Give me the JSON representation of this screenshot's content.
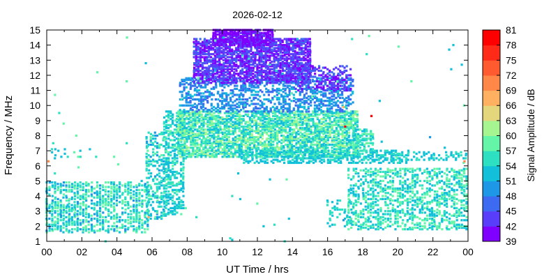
{
  "chart_data": {
    "type": "heatmap",
    "title": "2026-02-12",
    "xlabel": "UT Time / hrs",
    "ylabel": "Frequency / MHz",
    "xlim": [
      0,
      24
    ],
    "ylim": [
      1,
      15
    ],
    "x_ticks": [
      "00",
      "02",
      "04",
      "06",
      "08",
      "10",
      "12",
      "14",
      "16",
      "18",
      "20",
      "22",
      "00"
    ],
    "y_ticks": [
      "1",
      "2",
      "3",
      "4",
      "5",
      "6",
      "7",
      "8",
      "9",
      "10",
      "11",
      "12",
      "13",
      "14",
      "15"
    ],
    "colorbar": {
      "label": "Signal Amplitude / dB",
      "min": 39,
      "max": 81,
      "ticks": [
        "39",
        "42",
        "45",
        "48",
        "51",
        "54",
        "57",
        "60",
        "63",
        "66",
        "69",
        "72",
        "75",
        "78",
        "81"
      ],
      "colors": [
        "#8000ff",
        "#5a3cfb",
        "#3c6af0",
        "#1e98e6",
        "#12c0d9",
        "#2ee0c2",
        "#64f5a8",
        "#a6f591",
        "#e4d67c",
        "#ffb060",
        "#ff8848",
        "#ff5a30",
        "#ff2a18",
        "#ff0000"
      ]
    },
    "regions": [
      {
        "t0": 0.0,
        "t1": 5.9,
        "f0": 1.6,
        "f1": 4.9,
        "v0": 50,
        "v1": 60,
        "density": 0.55,
        "dt": 0.16
      },
      {
        "t0": 0.3,
        "t1": 3.0,
        "f0": 6.5,
        "f1": 7.1,
        "v0": 51,
        "v1": 56,
        "density": 0.12,
        "dt": 0.18
      },
      {
        "t0": 5.7,
        "t1": 6.9,
        "f0": 2.5,
        "f1": 8.2,
        "v0": 50,
        "v1": 58,
        "density": 0.35,
        "dt": 0.12
      },
      {
        "t0": 6.7,
        "t1": 7.9,
        "f0": 2.8,
        "f1": 9.6,
        "v0": 51,
        "v1": 58,
        "density": 0.45,
        "dt": 0.12
      },
      {
        "t0": 7.5,
        "t1": 17.8,
        "f0": 6.6,
        "f1": 9.6,
        "v0": 51,
        "v1": 62,
        "density": 0.7,
        "dt": 0.12
      },
      {
        "t0": 7.6,
        "t1": 17.5,
        "f0": 9.6,
        "f1": 11.8,
        "v0": 46,
        "v1": 52,
        "density": 0.45,
        "dt": 0.12
      },
      {
        "t0": 8.4,
        "t1": 15.0,
        "f0": 11.5,
        "f1": 14.4,
        "v0": 40,
        "v1": 46,
        "density": 0.75,
        "dt": 0.12
      },
      {
        "t0": 9.5,
        "t1": 12.9,
        "f0": 14.0,
        "f1": 15.0,
        "v0": 39,
        "v1": 43,
        "density": 0.85,
        "dt": 0.12
      },
      {
        "t0": 14.2,
        "t1": 17.4,
        "f0": 11.0,
        "f1": 12.6,
        "v0": 40,
        "v1": 47,
        "density": 0.45,
        "dt": 0.12
      },
      {
        "t0": 11.0,
        "t1": 20.7,
        "f0": 6.2,
        "f1": 7.0,
        "v0": 51,
        "v1": 56,
        "density": 0.5,
        "dt": 0.12
      },
      {
        "t0": 17.5,
        "t1": 18.7,
        "f0": 6.8,
        "f1": 8.4,
        "v0": 52,
        "v1": 59,
        "density": 0.5,
        "dt": 0.12
      },
      {
        "t0": 17.2,
        "t1": 24.0,
        "f0": 1.8,
        "f1": 5.8,
        "v0": 51,
        "v1": 60,
        "density": 0.45,
        "dt": 0.14
      },
      {
        "t0": 20.8,
        "t1": 24.0,
        "f0": 6.4,
        "f1": 6.9,
        "v0": 51,
        "v1": 57,
        "density": 0.35,
        "dt": 0.14
      },
      {
        "t0": 16.0,
        "t1": 17.5,
        "f0": 2.0,
        "f1": 3.8,
        "v0": 51,
        "v1": 57,
        "density": 0.25,
        "dt": 0.14
      },
      {
        "t0": 0.0,
        "t1": 24.0,
        "f0": 1.0,
        "f1": 15.0,
        "v0": 50,
        "v1": 60,
        "density": 0.004,
        "dt": 0.12
      }
    ],
    "highlights": [
      {
        "t": 17.0,
        "f": 8.6,
        "v": 80
      },
      {
        "t": 18.5,
        "f": 9.3,
        "v": 80
      },
      {
        "t": 16.9,
        "f": 9.9,
        "v": 66
      },
      {
        "t": 23.8,
        "f": 6.3,
        "v": 70
      },
      {
        "t": 0.1,
        "f": 6.3,
        "v": 70
      },
      {
        "t": 5.8,
        "f": 2.6,
        "v": 68
      }
    ]
  }
}
